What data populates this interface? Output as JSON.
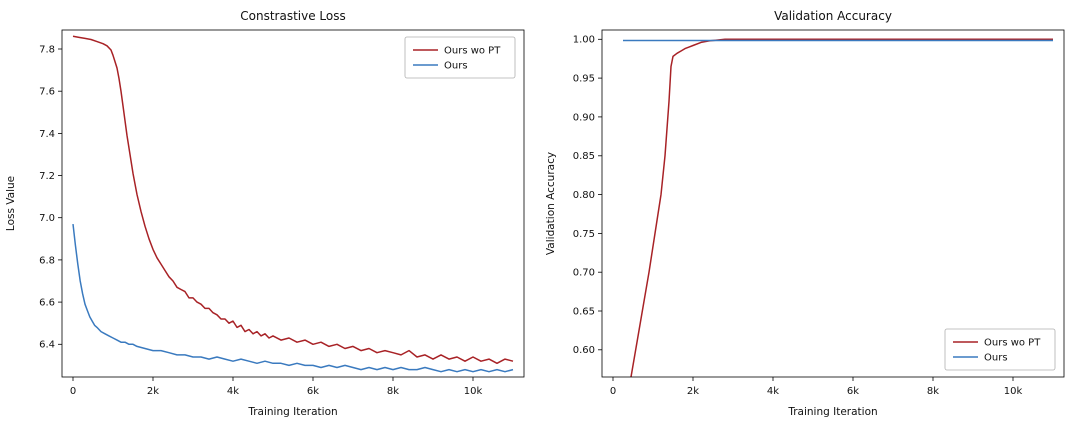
{
  "figure": {
    "background": "#ffffff"
  },
  "chart_data": [
    {
      "type": "line",
      "title": "Constrastive Loss",
      "xlabel": "Training Iteration",
      "ylabel": "Loss Value",
      "xlim": [
        -275,
        11275
      ],
      "ylim": [
        6.245,
        7.89
      ],
      "grid": false,
      "legend_loc": "upper right",
      "x_ticks": [
        {
          "v": 0,
          "label": "0"
        },
        {
          "v": 2000,
          "label": "2k"
        },
        {
          "v": 4000,
          "label": "4k"
        },
        {
          "v": 6000,
          "label": "6k"
        },
        {
          "v": 8000,
          "label": "8k"
        },
        {
          "v": 10000,
          "label": "10k"
        }
      ],
      "y_ticks": [
        {
          "v": 6.4,
          "label": "6.4"
        },
        {
          "v": 6.6,
          "label": "6.6"
        },
        {
          "v": 6.8,
          "label": "6.8"
        },
        {
          "v": 7.0,
          "label": "7.0"
        },
        {
          "v": 7.2,
          "label": "7.2"
        },
        {
          "v": 7.4,
          "label": "7.4"
        },
        {
          "v": 7.6,
          "label": "7.6"
        },
        {
          "v": 7.8,
          "label": "7.8"
        }
      ],
      "series": [
        {
          "name": "Ours wo PT",
          "color": "#a82226",
          "points": [
            [
              0,
              7.86
            ],
            [
              150,
              7.855
            ],
            [
              300,
              7.85
            ],
            [
              450,
              7.845
            ],
            [
              600,
              7.835
            ],
            [
              750,
              7.825
            ],
            [
              850,
              7.815
            ],
            [
              950,
              7.795
            ],
            [
              1000,
              7.77
            ],
            [
              1050,
              7.74
            ],
            [
              1100,
              7.71
            ],
            [
              1150,
              7.66
            ],
            [
              1200,
              7.6
            ],
            [
              1250,
              7.53
            ],
            [
              1300,
              7.46
            ],
            [
              1350,
              7.39
            ],
            [
              1400,
              7.33
            ],
            [
              1450,
              7.27
            ],
            [
              1500,
              7.21
            ],
            [
              1550,
              7.16
            ],
            [
              1600,
              7.11
            ],
            [
              1700,
              7.03
            ],
            [
              1800,
              6.96
            ],
            [
              1900,
              6.9
            ],
            [
              2000,
              6.85
            ],
            [
              2100,
              6.81
            ],
            [
              2200,
              6.78
            ],
            [
              2300,
              6.75
            ],
            [
              2400,
              6.72
            ],
            [
              2500,
              6.7
            ],
            [
              2600,
              6.67
            ],
            [
              2700,
              6.66
            ],
            [
              2800,
              6.65
            ],
            [
              2900,
              6.62
            ],
            [
              3000,
              6.62
            ],
            [
              3100,
              6.6
            ],
            [
              3200,
              6.59
            ],
            [
              3300,
              6.57
            ],
            [
              3400,
              6.57
            ],
            [
              3500,
              6.55
            ],
            [
              3600,
              6.54
            ],
            [
              3700,
              6.52
            ],
            [
              3800,
              6.52
            ],
            [
              3900,
              6.5
            ],
            [
              4000,
              6.51
            ],
            [
              4100,
              6.48
            ],
            [
              4200,
              6.49
            ],
            [
              4300,
              6.46
            ],
            [
              4400,
              6.47
            ],
            [
              4500,
              6.45
            ],
            [
              4600,
              6.46
            ],
            [
              4700,
              6.44
            ],
            [
              4800,
              6.45
            ],
            [
              4900,
              6.43
            ],
            [
              5000,
              6.44
            ],
            [
              5200,
              6.42
            ],
            [
              5400,
              6.43
            ],
            [
              5600,
              6.41
            ],
            [
              5800,
              6.42
            ],
            [
              6000,
              6.4
            ],
            [
              6200,
              6.41
            ],
            [
              6400,
              6.39
            ],
            [
              6600,
              6.4
            ],
            [
              6800,
              6.38
            ],
            [
              7000,
              6.39
            ],
            [
              7200,
              6.37
            ],
            [
              7400,
              6.38
            ],
            [
              7600,
              6.36
            ],
            [
              7800,
              6.37
            ],
            [
              8000,
              6.36
            ],
            [
              8200,
              6.35
            ],
            [
              8400,
              6.37
            ],
            [
              8600,
              6.34
            ],
            [
              8800,
              6.35
            ],
            [
              9000,
              6.33
            ],
            [
              9200,
              6.35
            ],
            [
              9400,
              6.33
            ],
            [
              9600,
              6.34
            ],
            [
              9800,
              6.32
            ],
            [
              10000,
              6.34
            ],
            [
              10200,
              6.32
            ],
            [
              10400,
              6.33
            ],
            [
              10600,
              6.31
            ],
            [
              10800,
              6.33
            ],
            [
              11000,
              6.32
            ]
          ]
        },
        {
          "name": "Ours",
          "color": "#3a7abf",
          "points": [
            [
              0,
              6.97
            ],
            [
              60,
              6.87
            ],
            [
              120,
              6.78
            ],
            [
              180,
              6.7
            ],
            [
              240,
              6.64
            ],
            [
              300,
              6.59
            ],
            [
              360,
              6.56
            ],
            [
              420,
              6.53
            ],
            [
              480,
              6.51
            ],
            [
              540,
              6.49
            ],
            [
              600,
              6.48
            ],
            [
              700,
              6.46
            ],
            [
              800,
              6.45
            ],
            [
              900,
              6.44
            ],
            [
              1000,
              6.43
            ],
            [
              1100,
              6.42
            ],
            [
              1200,
              6.41
            ],
            [
              1300,
              6.41
            ],
            [
              1400,
              6.4
            ],
            [
              1500,
              6.4
            ],
            [
              1600,
              6.39
            ],
            [
              1800,
              6.38
            ],
            [
              2000,
              6.37
            ],
            [
              2200,
              6.37
            ],
            [
              2400,
              6.36
            ],
            [
              2600,
              6.35
            ],
            [
              2800,
              6.35
            ],
            [
              3000,
              6.34
            ],
            [
              3200,
              6.34
            ],
            [
              3400,
              6.33
            ],
            [
              3600,
              6.34
            ],
            [
              3800,
              6.33
            ],
            [
              4000,
              6.32
            ],
            [
              4200,
              6.33
            ],
            [
              4400,
              6.32
            ],
            [
              4600,
              6.31
            ],
            [
              4800,
              6.32
            ],
            [
              5000,
              6.31
            ],
            [
              5200,
              6.31
            ],
            [
              5400,
              6.3
            ],
            [
              5600,
              6.31
            ],
            [
              5800,
              6.3
            ],
            [
              6000,
              6.3
            ],
            [
              6200,
              6.29
            ],
            [
              6400,
              6.3
            ],
            [
              6600,
              6.29
            ],
            [
              6800,
              6.3
            ],
            [
              7000,
              6.29
            ],
            [
              7200,
              6.28
            ],
            [
              7400,
              6.29
            ],
            [
              7600,
              6.28
            ],
            [
              7800,
              6.29
            ],
            [
              8000,
              6.28
            ],
            [
              8200,
              6.29
            ],
            [
              8400,
              6.28
            ],
            [
              8600,
              6.28
            ],
            [
              8800,
              6.29
            ],
            [
              9000,
              6.28
            ],
            [
              9200,
              6.27
            ],
            [
              9400,
              6.28
            ],
            [
              9600,
              6.27
            ],
            [
              9800,
              6.28
            ],
            [
              10000,
              6.27
            ],
            [
              10200,
              6.28
            ],
            [
              10400,
              6.27
            ],
            [
              10600,
              6.28
            ],
            [
              10800,
              6.27
            ],
            [
              11000,
              6.28
            ]
          ]
        }
      ]
    },
    {
      "type": "line",
      "title": "Validation Accuracy",
      "xlabel": "Training Iteration",
      "ylabel": "Validation Accuracy",
      "xlim": [
        -275,
        11275
      ],
      "ylim": [
        0.565,
        1.012
      ],
      "grid": false,
      "legend_loc": "lower right",
      "x_ticks": [
        {
          "v": 0,
          "label": "0"
        },
        {
          "v": 2000,
          "label": "2k"
        },
        {
          "v": 4000,
          "label": "4k"
        },
        {
          "v": 6000,
          "label": "6k"
        },
        {
          "v": 8000,
          "label": "8k"
        },
        {
          "v": 10000,
          "label": "10k"
        }
      ],
      "y_ticks": [
        {
          "v": 0.6,
          "label": "0.60"
        },
        {
          "v": 0.65,
          "label": "0.65"
        },
        {
          "v": 0.7,
          "label": "0.70"
        },
        {
          "v": 0.75,
          "label": "0.75"
        },
        {
          "v": 0.8,
          "label": "0.80"
        },
        {
          "v": 0.85,
          "label": "0.85"
        },
        {
          "v": 0.9,
          "label": "0.90"
        },
        {
          "v": 0.95,
          "label": "0.95"
        },
        {
          "v": 1.0,
          "label": "1.00"
        }
      ],
      "series": [
        {
          "name": "Ours wo PT",
          "color": "#a82226",
          "points": [
            [
              350,
              0.5
            ],
            [
              450,
              0.565
            ],
            [
              600,
              0.61
            ],
            [
              750,
              0.655
            ],
            [
              900,
              0.7
            ],
            [
              1050,
              0.75
            ],
            [
              1200,
              0.8
            ],
            [
              1300,
              0.85
            ],
            [
              1400,
              0.92
            ],
            [
              1450,
              0.965
            ],
            [
              1500,
              0.978
            ],
            [
              1600,
              0.982
            ],
            [
              1700,
              0.985
            ],
            [
              1800,
              0.988
            ],
            [
              1900,
              0.99
            ],
            [
              2000,
              0.992
            ],
            [
              2200,
              0.996
            ],
            [
              2400,
              0.998
            ],
            [
              2600,
              0.999
            ],
            [
              2800,
              1.0
            ],
            [
              3000,
              1.0
            ],
            [
              4000,
              1.0
            ],
            [
              5000,
              1.0
            ],
            [
              6000,
              1.0
            ],
            [
              7000,
              1.0
            ],
            [
              8000,
              1.0
            ],
            [
              9000,
              1.0
            ],
            [
              10000,
              1.0
            ],
            [
              11000,
              1.0
            ]
          ]
        },
        {
          "name": "Ours",
          "color": "#3a7abf",
          "points": [
            [
              250,
              0.9985
            ],
            [
              2000,
              0.9985
            ],
            [
              4000,
              0.9985
            ],
            [
              6000,
              0.9985
            ],
            [
              8000,
              0.9985
            ],
            [
              10000,
              0.9985
            ],
            [
              11000,
              0.9985
            ]
          ]
        }
      ]
    }
  ]
}
